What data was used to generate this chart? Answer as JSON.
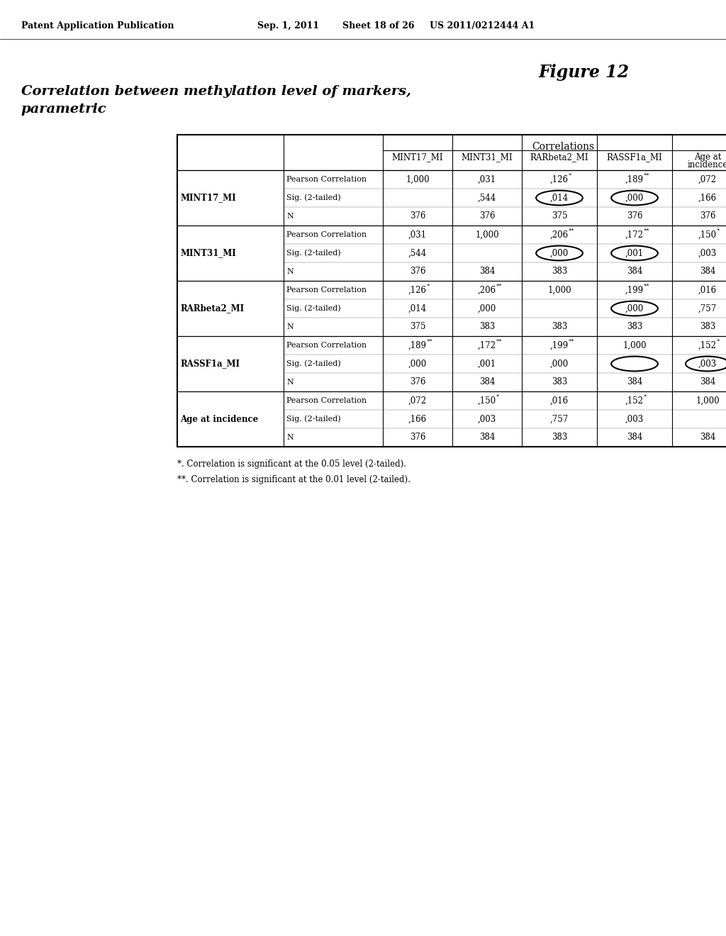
{
  "header_line1": "Patent Application Publication",
  "header_date": "Sep. 1, 2011",
  "header_sheet": "Sheet 18 of 26",
  "header_patent": "US 2011/0212444 A1",
  "figure_label": "Figure 12",
  "left_title_line1": "Correlation between methylation level of markers,",
  "left_title_line2": "parametric",
  "table_title": "Correlations",
  "col_headers": [
    "MINT17_MI",
    "MINT31_MI",
    "RARbeta2_MI",
    "RASSF1a_MI",
    "Age at\nincidence"
  ],
  "row_group_labels": [
    "MINT17_MI",
    "MINT31_MI",
    "RARbeta2_MI",
    "RASSF1a_MI",
    "Age at incidence"
  ],
  "sub_labels": [
    "Pearson Correlation",
    "Sig. (2-tailed)",
    "N"
  ],
  "cell_data": [
    [
      [
        "1,000",
        "",
        "376"
      ],
      [
        ",031",
        ",544",
        "376"
      ],
      [
        ",126*",
        ",014",
        "375"
      ],
      [
        ",189**",
        ",000",
        "376"
      ],
      [
        ",072",
        ",166",
        "376"
      ]
    ],
    [
      [
        ",031",
        ",544",
        "376"
      ],
      [
        "1,000",
        "",
        "384"
      ],
      [
        ",206**",
        ",000",
        "383"
      ],
      [
        ",172**",
        ",001",
        "384"
      ],
      [
        ",150*",
        ",003",
        "384"
      ]
    ],
    [
      [
        ",126*",
        ",014",
        "375"
      ],
      [
        ",206**",
        ",000",
        "383"
      ],
      [
        "1,000",
        "",
        "383"
      ],
      [
        ",199**",
        ",000",
        "383"
      ],
      [
        ",016",
        ",757",
        "383"
      ]
    ],
    [
      [
        ",189**",
        ",000",
        "376"
      ],
      [
        ",172**",
        ",001",
        "384"
      ],
      [
        ",199**",
        ",000",
        "383"
      ],
      [
        "1,000",
        "",
        "384"
      ],
      [
        ",152*",
        ",003",
        "384"
      ]
    ],
    [
      [
        ",072",
        ",166",
        "376"
      ],
      [
        ",150*",
        ",003",
        "384"
      ],
      [
        ",016",
        ",757",
        "383"
      ],
      [
        ",152*",
        ",003",
        "384"
      ],
      [
        "1,000",
        "",
        "384"
      ]
    ]
  ],
  "circles": [
    [
      0,
      3,
      1
    ],
    [
      0,
      2,
      1
    ],
    [
      1,
      2,
      1
    ],
    [
      1,
      3,
      1
    ],
    [
      2,
      3,
      1
    ],
    [
      3,
      4,
      1
    ],
    [
      3,
      3,
      1
    ]
  ],
  "footnote1": "*. Correlation is significant at the 0.05 level (2-tailed).",
  "footnote2": "**. Correlation is significant at the 0.01 level (2-tailed).",
  "background_color": "#ffffff"
}
